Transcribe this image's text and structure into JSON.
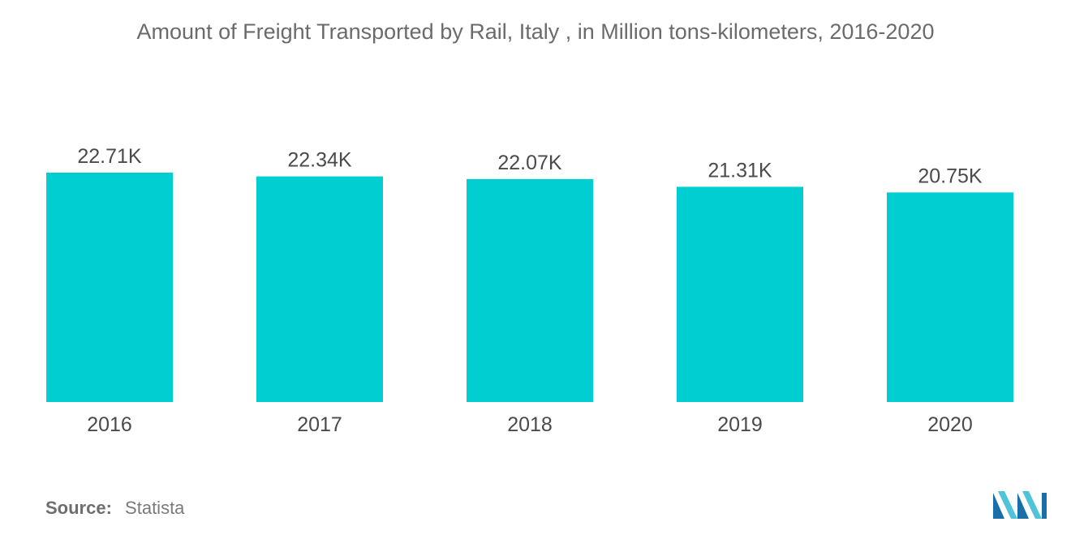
{
  "chart_data": {
    "type": "bar",
    "title": "Amount of Freight Transported by Rail, Italy , in Million tons-kilometers, 2016-2020",
    "categories": [
      "2016",
      "2017",
      "2018",
      "2019",
      "2020"
    ],
    "values": [
      22710,
      22340,
      22070,
      21310,
      20750
    ],
    "data_labels": [
      "22.71K",
      "22.34K",
      "22.07K",
      "21.31K",
      "20.75K"
    ],
    "xlabel": "",
    "ylabel": "",
    "ylim": [
      0,
      22710
    ],
    "grid": false,
    "legend": "none",
    "bar_color": "#00CED1"
  },
  "footer": {
    "source_label": "Source:",
    "source_value": "Statista"
  },
  "logo": {
    "icon": "mordor-intelligence-logo-icon",
    "colors": [
      "#1B6FA8",
      "#4FC3D9"
    ]
  }
}
